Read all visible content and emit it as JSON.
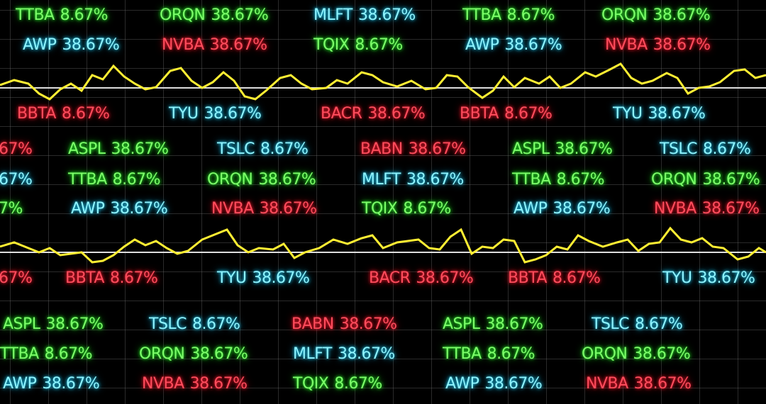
{
  "colors": {
    "background": "#000000",
    "green": "#7dff6a",
    "cyan": "#8ff4ff",
    "red": "#ff4d5d",
    "wave": "#ffee33",
    "baseline": "#dddddd"
  },
  "tickers": [
    {
      "sym": "TTBA",
      "val": "8.67%",
      "color": "green"
    },
    {
      "sym": "ORQN",
      "val": "38.67%",
      "color": "green"
    },
    {
      "sym": "MLFT",
      "val": "38.67%",
      "color": "cyan"
    },
    {
      "sym": "TTBA",
      "val": "8.67%",
      "color": "green"
    },
    {
      "sym": "ORQN",
      "val": "38.67%",
      "color": "green"
    },
    {
      "sym": "AWP",
      "val": "38.67%",
      "color": "cyan"
    },
    {
      "sym": "NVBA",
      "val": "38.67%",
      "color": "red"
    },
    {
      "sym": "TQIX",
      "val": "8.67%",
      "color": "green"
    },
    {
      "sym": "AWP",
      "val": "38.67%",
      "color": "cyan"
    },
    {
      "sym": "NVBA",
      "val": "38.67%",
      "color": "red"
    },
    {
      "sym": "BBTA",
      "val": "8.67%",
      "color": "red"
    },
    {
      "sym": "TYU",
      "val": "38.67%",
      "color": "cyan"
    },
    {
      "sym": "BACR",
      "val": "38.67%",
      "color": "red"
    },
    {
      "sym": "BBTA",
      "val": "8.67%",
      "color": "red"
    },
    {
      "sym": "TYU",
      "val": "38.67%",
      "color": "cyan"
    },
    {
      "sym": "",
      "val": "67%",
      "color": "red"
    },
    {
      "sym": "ASPL",
      "val": "38.67%",
      "color": "green"
    },
    {
      "sym": "TSLC",
      "val": "8.67%",
      "color": "cyan"
    },
    {
      "sym": "BABN",
      "val": "38.67%",
      "color": "red"
    },
    {
      "sym": "ASPL",
      "val": "38.67%",
      "color": "green"
    },
    {
      "sym": "TSLC",
      "val": "8.67%",
      "color": "cyan"
    },
    {
      "sym": "",
      "val": "67%",
      "color": "cyan"
    },
    {
      "sym": "TTBA",
      "val": "8.67%",
      "color": "green"
    },
    {
      "sym": "ORQN",
      "val": "38.67%",
      "color": "green"
    },
    {
      "sym": "MLFT",
      "val": "38.67%",
      "color": "cyan"
    },
    {
      "sym": "TTBA",
      "val": "8.67%",
      "color": "green"
    },
    {
      "sym": "ORQN",
      "val": "38.67%",
      "color": "green"
    },
    {
      "sym": "",
      "val": "7%",
      "color": "green"
    },
    {
      "sym": "AWP",
      "val": "38.67%",
      "color": "cyan"
    },
    {
      "sym": "NVBA",
      "val": "38.67%",
      "color": "red"
    },
    {
      "sym": "TQIX",
      "val": "8.67%",
      "color": "green"
    },
    {
      "sym": "AWP",
      "val": "38.67%",
      "color": "cyan"
    },
    {
      "sym": "NVBA",
      "val": "38.67%",
      "color": "red"
    },
    {
      "sym": "",
      "val": "67%",
      "color": "red"
    },
    {
      "sym": "BBTA",
      "val": "8.67%",
      "color": "red"
    },
    {
      "sym": "TYU",
      "val": "38.67%",
      "color": "cyan"
    },
    {
      "sym": "BACR",
      "val": "38.67%",
      "color": "red"
    },
    {
      "sym": "BBTA",
      "val": "8.67%",
      "color": "red"
    },
    {
      "sym": "TYU",
      "val": "38.67%",
      "color": "cyan"
    },
    {
      "sym": "ASPL",
      "val": "38.67%",
      "color": "green"
    },
    {
      "sym": "TSLC",
      "val": "8.67%",
      "color": "cyan"
    },
    {
      "sym": "BABN",
      "val": "38.67%",
      "color": "red"
    },
    {
      "sym": "ASPL",
      "val": "38.67%",
      "color": "green"
    },
    {
      "sym": "TSLC",
      "val": "8.67%",
      "color": "cyan"
    },
    {
      "sym": "TTBA",
      "val": "8.67%",
      "color": "green"
    },
    {
      "sym": "ORQN",
      "val": "38.67%",
      "color": "green"
    },
    {
      "sym": "MLFT",
      "val": "38.67%",
      "color": "cyan"
    },
    {
      "sym": "TTBA",
      "val": "8.67%",
      "color": "green"
    },
    {
      "sym": "ORQN",
      "val": "38.67%",
      "color": "green"
    },
    {
      "sym": "AWP",
      "val": "38.67%",
      "color": "cyan"
    },
    {
      "sym": "NVBA",
      "val": "38.67%",
      "color": "red"
    },
    {
      "sym": "TQIX",
      "val": "8.67%",
      "color": "green"
    },
    {
      "sym": "AWP",
      "val": "38.67%",
      "color": "cyan"
    },
    {
      "sym": "NVBA",
      "val": "38.67%",
      "color": "red"
    }
  ]
}
